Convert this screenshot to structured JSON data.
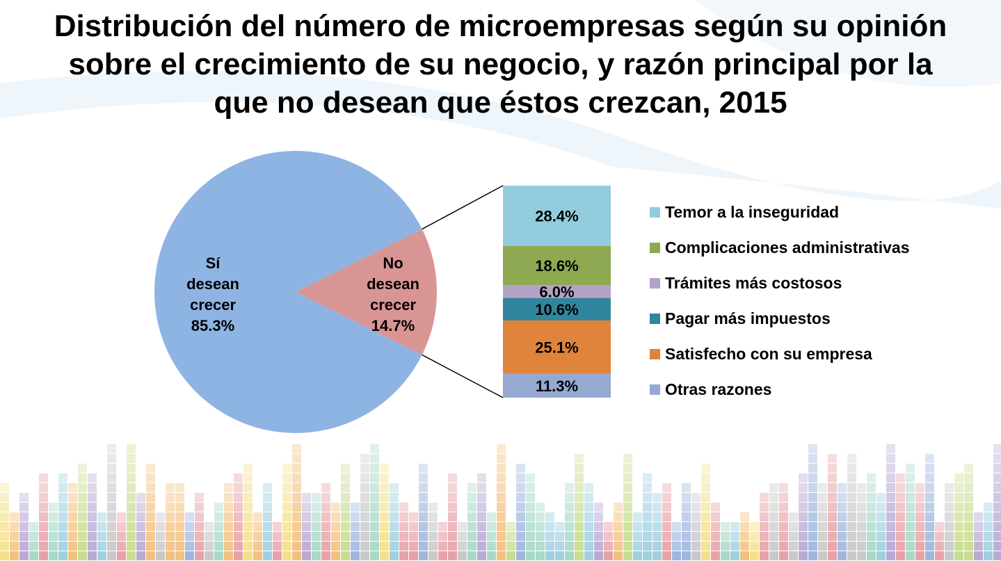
{
  "title_lines": [
    "Distribución del número de microempresas según su opinión",
    "sobre el crecimiento de su negocio, y razón principal por la",
    "que no desean que éstos crezcan, 2015"
  ],
  "chart_data": [
    {
      "type": "pie",
      "slices": [
        {
          "label": [
            "Sí",
            "desean",
            "crecer",
            "85.3%"
          ],
          "value": 85.3,
          "color": "#8eb4e3"
        },
        {
          "label": [
            "No",
            "desean",
            "crecer",
            "14.7%"
          ],
          "value": 14.7,
          "color": "#d99594"
        }
      ]
    },
    {
      "type": "bar",
      "stacked": true,
      "series": [
        {
          "name": "Temor a la inseguridad",
          "value": 28.4,
          "label": "28.4%",
          "color": "#93cddd"
        },
        {
          "name": "Complicaciones administrativas",
          "value": 18.6,
          "label": "18.6%",
          "color": "#8fa952"
        },
        {
          "name": "Trámites más costosos",
          "value": 6.0,
          "label": "6.0%",
          "color": "#b3a2c7"
        },
        {
          "name": "Pagar más impuestos",
          "value": 10.6,
          "label": "10.6%",
          "color": "#31859c"
        },
        {
          "name": "Satisfecho con su empresa",
          "value": 25.1,
          "label": "25.1%",
          "color": "#e0843c"
        },
        {
          "name": "Otras razones",
          "value": 11.3,
          "label": "11.3%",
          "color": "#95a9d1"
        }
      ]
    }
  ]
}
